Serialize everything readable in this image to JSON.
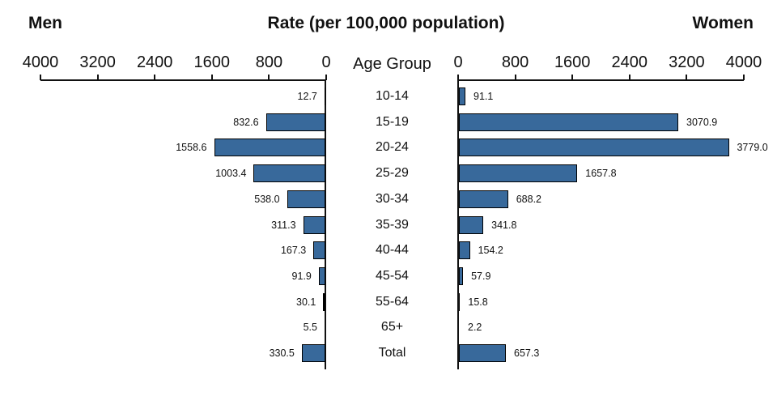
{
  "header": {
    "left_label": "Men",
    "title": "Rate (per 100,000 population)",
    "right_label": "Women"
  },
  "axis": {
    "center_label": "Age Group",
    "left_ticks": [
      4000,
      3200,
      2400,
      1600,
      800,
      0
    ],
    "right_ticks": [
      0,
      800,
      1600,
      2400,
      3200,
      4000
    ],
    "max": 4000
  },
  "colors": {
    "bar_fill": "#38699B",
    "bar_border": "#000000",
    "axis": "#111111"
  },
  "chart_data": {
    "type": "bar",
    "orientation": "bilateral-horizontal",
    "title": "Rate (per 100,000 population)",
    "categories": [
      "10-14",
      "15-19",
      "20-24",
      "25-29",
      "30-34",
      "35-39",
      "40-44",
      "45-54",
      "55-64",
      "65+",
      "Total"
    ],
    "series": [
      {
        "name": "Men",
        "side": "left",
        "values": [
          12.7,
          832.6,
          1558.6,
          1003.4,
          538.0,
          311.3,
          167.3,
          91.9,
          30.1,
          5.5,
          330.5
        ]
      },
      {
        "name": "Women",
        "side": "right",
        "values": [
          91.1,
          3070.9,
          3779.0,
          1657.8,
          688.2,
          341.8,
          154.2,
          57.9,
          15.8,
          2.2,
          657.3
        ]
      }
    ],
    "xlim": [
      0,
      4000
    ],
    "grid": false,
    "legend": "none"
  }
}
